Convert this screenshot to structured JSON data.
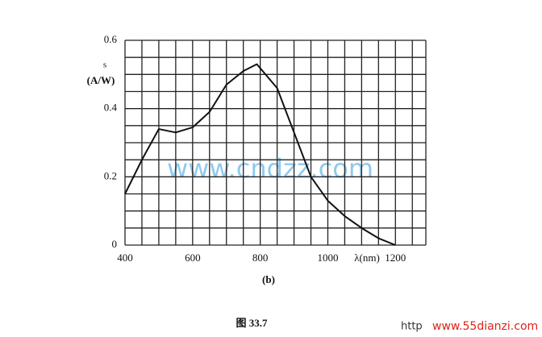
{
  "chart_data": {
    "type": "line",
    "y_label_symbol": "s",
    "y_label_unit": "(A/W)",
    "x_label": "λ(nm)",
    "caption": "(b)",
    "figure_label": "图 33.7",
    "watermarks": [
      "www.cndzz.com",
      "http",
      "www.55dianzi.com"
    ],
    "x": [
      400,
      450,
      500,
      550,
      600,
      650,
      700,
      750,
      790,
      850,
      900,
      950,
      1000,
      1050,
      1100,
      1150,
      1200
    ],
    "series": [
      {
        "name": "s",
        "color": "#111111",
        "values": [
          0.15,
          0.25,
          0.34,
          0.33,
          0.345,
          0.39,
          0.47,
          0.51,
          0.53,
          0.46,
          0.33,
          0.2,
          0.13,
          0.085,
          0.05,
          0.02,
          0
        ]
      }
    ],
    "xlim": [
      400,
      1290
    ],
    "ylim": [
      0,
      0.6
    ],
    "xticks": [
      400,
      600,
      800,
      1000,
      1200
    ],
    "yticks": [
      0,
      0.2,
      0.4,
      0.6
    ],
    "x_gridlines": [
      400,
      450,
      500,
      550,
      600,
      650,
      700,
      750,
      800,
      850,
      900,
      950,
      1000,
      1050,
      1100,
      1150,
      1200,
      1250,
      1290
    ],
    "y_gridlines": [
      0,
      0.05,
      0.1,
      0.15,
      0.2,
      0.25,
      0.3,
      0.35,
      0.4,
      0.45,
      0.5,
      0.55,
      0.6
    ],
    "grid": true
  }
}
